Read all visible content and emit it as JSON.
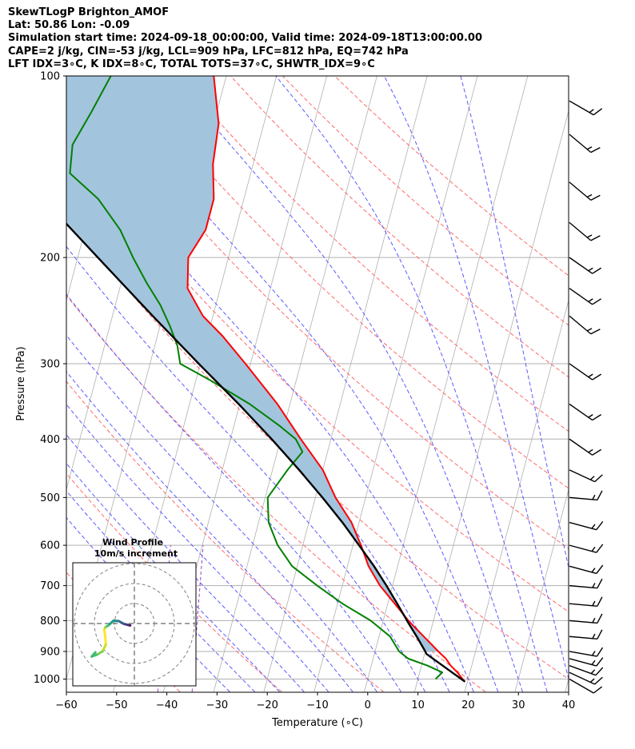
{
  "header": {
    "line1": "SkewTLogP Brighton_AMOF",
    "line2": "Lat: 50.86   Lon: -0.09",
    "line3": "Simulation start time: 2024-09-18_00:00:00, Valid time: 2024-09-18T13:00:00.00",
    "line4": "CAPE=2 j/kg, CIN=-53 j/kg, LCL=909 hPa, LFC=812 hPa, EQ=742 hPa",
    "line5": "LFT IDX=3∘C, K IDX=8∘C, TOTAL TOTS=37∘C, SHWTR_IDX=9∘C"
  },
  "chart_data": {
    "type": "line",
    "subtype": "skew-t log-p",
    "xlabel": "Temperature (∘C)",
    "ylabel": "Pressure (hPa)",
    "x_ticks": [
      -60,
      -50,
      -40,
      -30,
      -20,
      -10,
      0,
      10,
      20,
      30,
      40
    ],
    "y_ticks": [
      100,
      200,
      300,
      400,
      500,
      600,
      700,
      800,
      900,
      1000
    ],
    "xlim": [
      -60,
      40
    ],
    "ylim": [
      1050,
      100
    ],
    "y_scale": "log",
    "skew": "isotherms slanted toward upper-right",
    "grid": true,
    "colors": {
      "temperature": "#ff0000",
      "dewpoint": "#008000",
      "parcel": "#000000",
      "cape_fill": "#a3c4dd",
      "dry_adiabats": "#ff6a6a",
      "moist_adiabats": "#5b5bff",
      "mixing_ratio": "#9a40c8",
      "grid": "#b0b0b0"
    },
    "series": [
      {
        "role": "temperature",
        "points": [
          {
            "p": 1010,
            "t": 19.5
          },
          {
            "p": 1000,
            "t": 18.9
          },
          {
            "p": 975,
            "t": 17.5
          },
          {
            "p": 950,
            "t": 15.8
          },
          {
            "p": 925,
            "t": 14.5
          },
          {
            "p": 900,
            "t": 12.6
          },
          {
            "p": 875,
            "t": 10.8
          },
          {
            "p": 850,
            "t": 8.9
          },
          {
            "p": 800,
            "t": 5.0
          },
          {
            "p": 750,
            "t": 1.4
          },
          {
            "p": 700,
            "t": -2.5
          },
          {
            "p": 650,
            "t": -5.8
          },
          {
            "p": 600,
            "t": -8.4
          },
          {
            "p": 550,
            "t": -11.5
          },
          {
            "p": 500,
            "t": -16.0
          },
          {
            "p": 450,
            "t": -20.0
          },
          {
            "p": 400,
            "t": -26.0
          },
          {
            "p": 350,
            "t": -32.5
          },
          {
            "p": 300,
            "t": -41.0
          },
          {
            "p": 270,
            "t": -47.0
          },
          {
            "p": 250,
            "t": -52.0
          },
          {
            "p": 225,
            "t": -56.5
          },
          {
            "p": 200,
            "t": -58.0
          },
          {
            "p": 180,
            "t": -56.0
          },
          {
            "p": 160,
            "t": -56.0
          },
          {
            "p": 140,
            "t": -58.0
          },
          {
            "p": 120,
            "t": -59.0
          },
          {
            "p": 100,
            "t": -62.5
          }
        ]
      },
      {
        "role": "dewpoint",
        "points": [
          {
            "p": 1000,
            "t": 13.5
          },
          {
            "p": 975,
            "t": 14.5
          },
          {
            "p": 950,
            "t": 11.2
          },
          {
            "p": 925,
            "t": 7.0
          },
          {
            "p": 900,
            "t": 4.8
          },
          {
            "p": 850,
            "t": 2.2
          },
          {
            "p": 800,
            "t": -2.5
          },
          {
            "p": 750,
            "t": -9.0
          },
          {
            "p": 700,
            "t": -15.0
          },
          {
            "p": 650,
            "t": -21.0
          },
          {
            "p": 600,
            "t": -25.0
          },
          {
            "p": 550,
            "t": -28.0
          },
          {
            "p": 500,
            "t": -29.5
          },
          {
            "p": 450,
            "t": -27.0
          },
          {
            "p": 420,
            "t": -25.0
          },
          {
            "p": 400,
            "t": -27.0
          },
          {
            "p": 380,
            "t": -31.0
          },
          {
            "p": 350,
            "t": -38.0
          },
          {
            "p": 320,
            "t": -47.0
          },
          {
            "p": 300,
            "t": -54.0
          },
          {
            "p": 280,
            "t": -55.5
          },
          {
            "p": 260,
            "t": -58.0
          },
          {
            "p": 240,
            "t": -61.0
          },
          {
            "p": 220,
            "t": -65.0
          },
          {
            "p": 200,
            "t": -69.0
          },
          {
            "p": 180,
            "t": -73.0
          },
          {
            "p": 160,
            "t": -79.0
          },
          {
            "p": 145,
            "t": -86.0
          },
          {
            "p": 130,
            "t": -87.0
          },
          {
            "p": 115,
            "t": -85.0
          },
          {
            "p": 100,
            "t": -83.0
          }
        ]
      },
      {
        "role": "parcel",
        "points": [
          {
            "p": 1010,
            "t": 19.5
          },
          {
            "p": 909,
            "t": 10.4
          },
          {
            "p": 900,
            "t": 10.0
          },
          {
            "p": 850,
            "t": 7.5
          },
          {
            "p": 812,
            "t": 5.4
          },
          {
            "p": 750,
            "t": 1.9
          },
          {
            "p": 700,
            "t": -1.2
          },
          {
            "p": 650,
            "t": -4.7
          },
          {
            "p": 600,
            "t": -8.8
          },
          {
            "p": 550,
            "t": -13.3
          },
          {
            "p": 500,
            "t": -18.6
          },
          {
            "p": 450,
            "t": -24.7
          },
          {
            "p": 400,
            "t": -31.8
          },
          {
            "p": 350,
            "t": -40.2
          },
          {
            "p": 300,
            "t": -50.3
          },
          {
            "p": 250,
            "t": -62.0
          },
          {
            "p": 200,
            "t": -76.0
          },
          {
            "p": 150,
            "t": -94.0
          },
          {
            "p": 100,
            "t": -119.5
          }
        ]
      }
    ],
    "inset": {
      "title_line1": "Wind Profile",
      "title_line2": "10m/s increment",
      "type": "hodograph",
      "rings_ms": [
        10,
        20,
        30
      ],
      "points_uv": [
        [
          -0.8,
          -0.4
        ],
        [
          -1.2,
          -0.3
        ],
        [
          -2.0,
          -0.1
        ],
        [
          -3.0,
          0.5
        ],
        [
          -4.0,
          0.6
        ],
        [
          -5.0,
          -0.4
        ],
        [
          -5.6,
          -0.8
        ],
        [
          -5.8,
          -1.3
        ],
        [
          -5.6,
          -2.6
        ],
        [
          -5.5,
          -4.4
        ],
        [
          -6.1,
          -5.8
        ],
        [
          -7.2,
          -6.5
        ],
        [
          -8.2,
          -6.9
        ],
        [
          -7.5,
          -6.0
        ]
      ]
    },
    "wind_barbs": [
      {
        "p": 1000,
        "speed_kt": 10,
        "dir_deg": 240
      },
      {
        "p": 975,
        "speed_kt": 15,
        "dir_deg": 245
      },
      {
        "p": 950,
        "speed_kt": 15,
        "dir_deg": 250
      },
      {
        "p": 925,
        "speed_kt": 15,
        "dir_deg": 255
      },
      {
        "p": 900,
        "speed_kt": 15,
        "dir_deg": 260
      },
      {
        "p": 850,
        "speed_kt": 15,
        "dir_deg": 265
      },
      {
        "p": 800,
        "speed_kt": 15,
        "dir_deg": 265
      },
      {
        "p": 750,
        "speed_kt": 15,
        "dir_deg": 265
      },
      {
        "p": 700,
        "speed_kt": 15,
        "dir_deg": 265
      },
      {
        "p": 650,
        "speed_kt": 15,
        "dir_deg": 255
      },
      {
        "p": 600,
        "speed_kt": 15,
        "dir_deg": 255
      },
      {
        "p": 550,
        "speed_kt": 15,
        "dir_deg": 255
      },
      {
        "p": 500,
        "speed_kt": 15,
        "dir_deg": 265
      },
      {
        "p": 450,
        "speed_kt": 15,
        "dir_deg": 245
      },
      {
        "p": 400,
        "speed_kt": 15,
        "dir_deg": 235
      },
      {
        "p": 350,
        "speed_kt": 15,
        "dir_deg": 235
      },
      {
        "p": 300,
        "speed_kt": 15,
        "dir_deg": 235
      },
      {
        "p": 250,
        "speed_kt": 15,
        "dir_deg": 230
      },
      {
        "p": 225,
        "speed_kt": 15,
        "dir_deg": 235
      },
      {
        "p": 200,
        "speed_kt": 15,
        "dir_deg": 235
      },
      {
        "p": 175,
        "speed_kt": 15,
        "dir_deg": 230
      },
      {
        "p": 150,
        "speed_kt": 15,
        "dir_deg": 230
      },
      {
        "p": 125,
        "speed_kt": 15,
        "dir_deg": 230
      },
      {
        "p": 110,
        "speed_kt": 15,
        "dir_deg": 240
      }
    ]
  }
}
